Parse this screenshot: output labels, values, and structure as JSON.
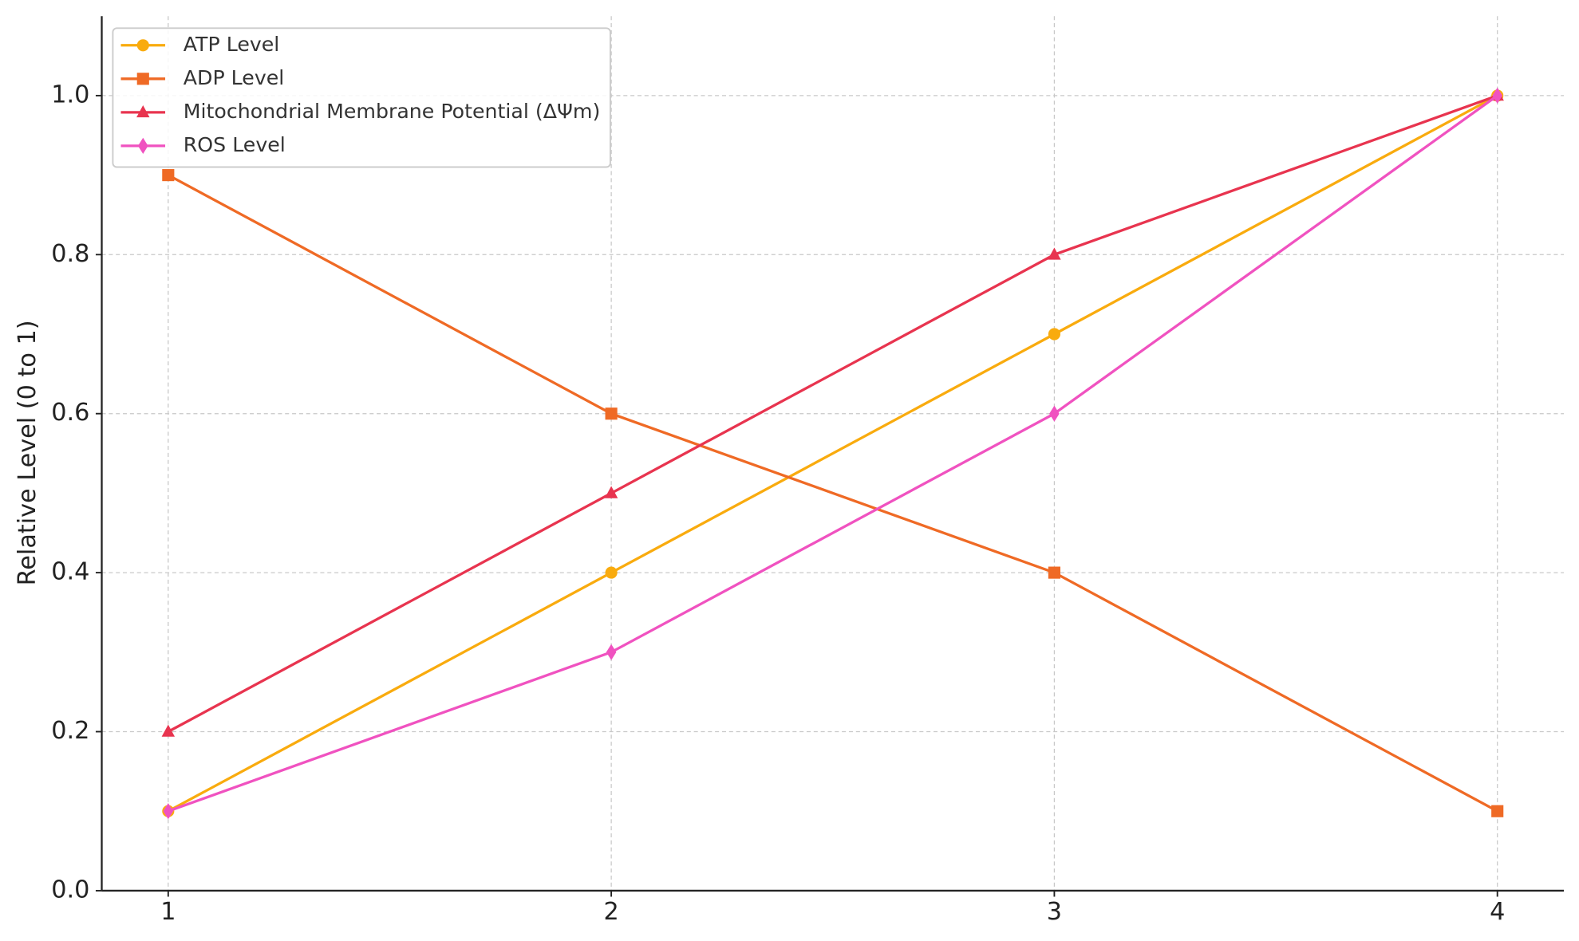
{
  "chart_data": {
    "type": "line",
    "y_label": "Relative Level (0 to 1)",
    "x": [
      1,
      2,
      3,
      4
    ],
    "series": [
      {
        "name": "ATP Level",
        "color": "#f9ab0e",
        "marker": "circle",
        "values": [
          0.1,
          0.4,
          0.7,
          1.0
        ]
      },
      {
        "name": "ADP Level",
        "color": "#ef6a25",
        "marker": "square",
        "values": [
          0.9,
          0.6,
          0.4,
          0.1
        ]
      },
      {
        "name": "Mitochondrial Membrane Potential (ΔΨm)",
        "color": "#e8344f",
        "marker": "triangle",
        "values": [
          0.2,
          0.5,
          0.8,
          1.0
        ]
      },
      {
        "name": "ROS Level",
        "color": "#f052c0",
        "marker": "diamond",
        "values": [
          0.1,
          0.3,
          0.6,
          1.0
        ]
      }
    ],
    "xlim": [
      0.85,
      4.15
    ],
    "xticks": [
      1,
      2,
      3,
      4
    ],
    "ylim": [
      0,
      1.1
    ],
    "yticks": [
      {
        "value": 0,
        "label": "0.0"
      },
      0.2,
      0.4,
      0.6,
      0.8,
      {
        "value": 1.0,
        "label": "1.0"
      }
    ],
    "grid": true,
    "legend": "upper left"
  }
}
